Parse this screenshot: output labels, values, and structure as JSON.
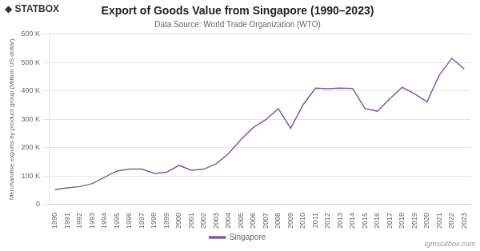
{
  "chart_data": {
    "type": "line",
    "title": "Export of Goods Value from Singapore (1990–2023)",
    "subtitle": "Data Source: World Trade Organization (WTO)",
    "y_label": "Merchandise exports by product group (Million US dollar)",
    "categories": [
      "1990",
      "1991",
      "1992",
      "1993",
      "1994",
      "1995",
      "1996",
      "1997",
      "1998",
      "1999",
      "2000",
      "2001",
      "2002",
      "2003",
      "2004",
      "2005",
      "2006",
      "2007",
      "2008",
      "2009",
      "2010",
      "2011",
      "2012",
      "2013",
      "2014",
      "2015",
      "2016",
      "2017",
      "2018",
      "2019",
      "2020",
      "2021",
      "2022",
      "2023"
    ],
    "series": [
      {
        "name": "Singapore",
        "color": "#7B5EA7",
        "values": [
          52900,
          59200,
          63600,
          74200,
          96500,
          118400,
          125000,
          125000,
          110000,
          114000,
          138000,
          121000,
          125000,
          144000,
          180000,
          230000,
          272000,
          299000,
          338000,
          269000,
          351000,
          410000,
          408000,
          410000,
          409000,
          338000,
          329000,
          373000,
          413000,
          390000,
          362000,
          457000,
          515000,
          478000
        ]
      }
    ],
    "ylim": [
      0,
      600000
    ],
    "yticks": [
      0,
      {
        "value": 100000,
        "label": "100 K"
      },
      {
        "value": 200000,
        "label": "200 K"
      },
      {
        "value": 300000,
        "label": "300 K"
      },
      {
        "value": 400000,
        "label": "400 K"
      },
      {
        "value": 500000,
        "label": "500 K"
      },
      {
        "value": 600000,
        "label": "600 K"
      }
    ],
    "grid": true,
    "legend": "bottom",
    "annotations": [
      "◆ STATBOX",
      "tgmstatbox.com"
    ]
  }
}
